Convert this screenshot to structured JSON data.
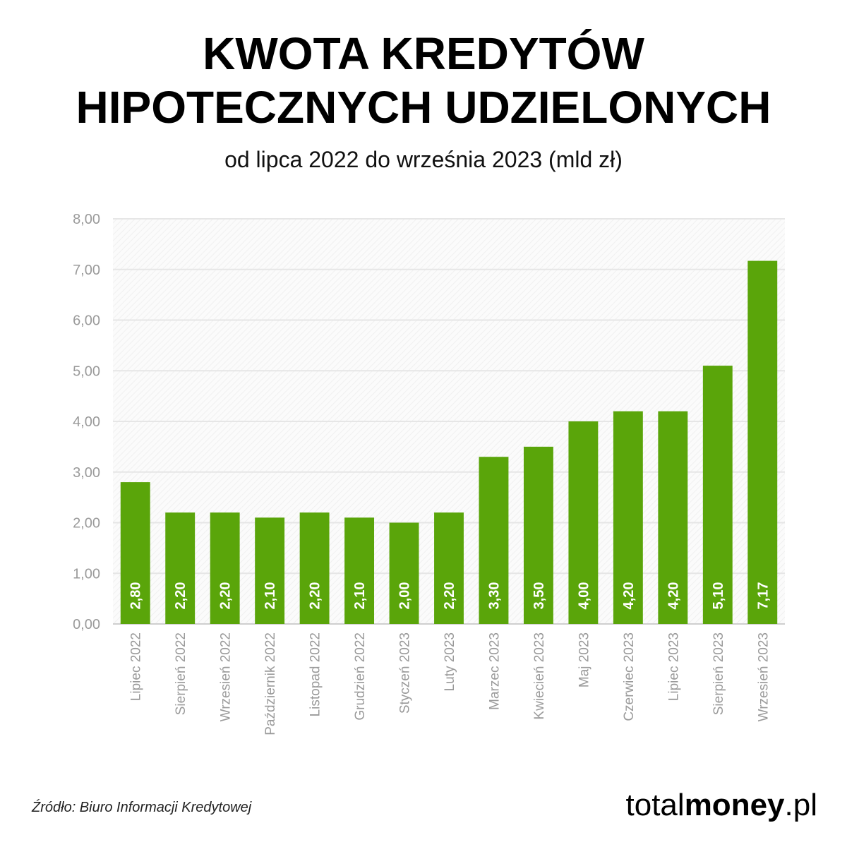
{
  "header": {
    "title_line1": "KWOTA KREDYTÓW",
    "title_line2": "HIPOTECZNYCH UDZIELONYCH",
    "subtitle": "od lipca 2022 do września 2023 (mld zł)"
  },
  "footer": {
    "source": "Źródło: Biuro Informacji Kredytowej",
    "brand_prefix": "total",
    "brand_bold": "money",
    "brand_suffix": ".pl"
  },
  "colors": {
    "bar": "#5aa50a",
    "grid": "#e6e6e6",
    "tick_text": "#9a9a9a",
    "value_text": "#ffffff"
  },
  "chart_data": {
    "type": "bar",
    "categories": [
      "Lipiec 2022",
      "Sierpień 2022",
      "Wrzesień 2022",
      "Październik 2022",
      "Listopad 2022",
      "Grudzień 2022",
      "Styczeń 2023",
      "Luty 2023",
      "Marzec 2023",
      "Kwiecień 2023",
      "Maj 2023",
      "Czerwiec 2023",
      "Lipiec 2023",
      "Sierpień 2023",
      "Wrzesień 2023"
    ],
    "values": [
      2.8,
      2.2,
      2.2,
      2.1,
      2.2,
      2.1,
      2.0,
      2.2,
      3.3,
      3.5,
      4.0,
      4.2,
      4.2,
      5.1,
      7.17
    ],
    "value_labels": [
      "2,80",
      "2,20",
      "2,20",
      "2,10",
      "2,20",
      "2,10",
      "2,00",
      "2,20",
      "3,30",
      "3,50",
      "4,00",
      "4,20",
      "4,20",
      "5,10",
      "7,17"
    ],
    "yticks": [
      0,
      1,
      2,
      3,
      4,
      5,
      6,
      7,
      8
    ],
    "ytick_labels": [
      "0,00",
      "1,00",
      "2,00",
      "3,00",
      "4,00",
      "5,00",
      "6,00",
      "7,00",
      "8,00"
    ],
    "ylim": [
      0,
      8
    ],
    "grid": true
  }
}
